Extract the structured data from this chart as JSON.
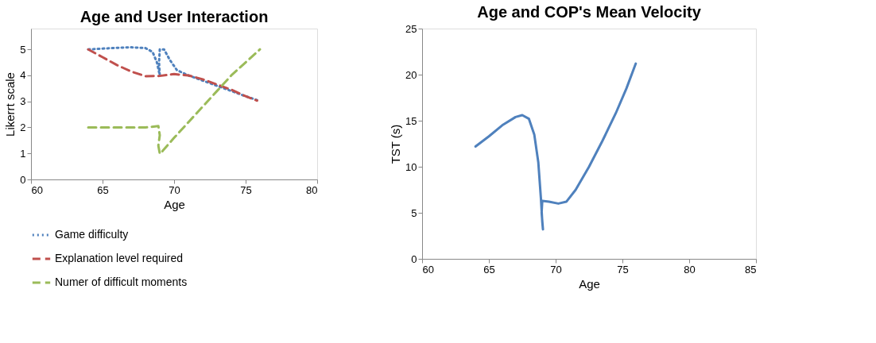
{
  "chart_data": [
    {
      "type": "line",
      "title": "Age and User Interaction",
      "xlabel": "Age",
      "ylabel": "Likerrt scale",
      "xlim": [
        60,
        80
      ],
      "xticks": [
        60,
        65,
        70,
        75,
        80
      ],
      "ylim": [
        0,
        5.8
      ],
      "yticks": [
        0,
        1,
        2,
        3,
        4,
        5
      ],
      "legend": "bottom",
      "series": [
        {
          "name": "Game difficulty",
          "color": "#4f81bd",
          "line_style": "dotted",
          "x": [
            64,
            65,
            66,
            67,
            68,
            68.5,
            68.8,
            69,
            68.95,
            69,
            69.3,
            69.7,
            70.2,
            71,
            72,
            73,
            74,
            75,
            75.8
          ],
          "values": [
            5,
            5.03,
            5.06,
            5.08,
            5.05,
            4.9,
            4.5,
            4,
            4.5,
            5,
            5,
            4.6,
            4.2,
            4,
            3.8,
            3.6,
            3.4,
            3.2,
            3.05
          ]
        },
        {
          "name": "Explanation level required",
          "color": "#c0504d",
          "line_style": "dashed",
          "x": [
            64,
            65,
            66,
            67,
            68,
            69,
            70,
            71,
            72,
            73,
            74,
            75,
            75.8
          ],
          "values": [
            5,
            4.7,
            4.4,
            4.15,
            3.97,
            3.98,
            4.05,
            4,
            3.85,
            3.65,
            3.45,
            3.2,
            3.03
          ]
        },
        {
          "name": "Numer of difficult moments",
          "color": "#9bbb59",
          "line_style": "dashed",
          "x": [
            64,
            65,
            66,
            67,
            68,
            68.9,
            69,
            68.9,
            69,
            69.1,
            69.2,
            70,
            71,
            72,
            73,
            74,
            75,
            76
          ],
          "values": [
            2,
            2,
            2,
            2,
            2,
            2.05,
            1.7,
            1.3,
            1,
            1,
            1.1,
            1.6,
            2.2,
            2.8,
            3.4,
            4,
            4.5,
            5
          ]
        }
      ]
    },
    {
      "type": "line",
      "title": "Age and COP's Mean Velocity",
      "xlabel": "Age",
      "ylabel": "TST (s)",
      "xlim": [
        60,
        85
      ],
      "xticks": [
        60,
        65,
        70,
        75,
        80,
        85
      ],
      "ylim": [
        0,
        25
      ],
      "yticks": [
        0,
        5,
        10,
        15,
        20,
        25
      ],
      "series": [
        {
          "color": "#4f81bd",
          "line_style": "solid",
          "x": [
            64,
            65,
            66,
            67,
            67.5,
            68,
            68.4,
            68.7,
            68.9,
            69,
            69.05,
            68.95,
            69,
            69.5,
            70.2,
            70.8,
            71.5,
            72.5,
            73.5,
            74.5,
            75.3,
            76
          ],
          "values": [
            12.2,
            13.3,
            14.5,
            15.4,
            15.6,
            15.2,
            13.5,
            10.5,
            6.5,
            4,
            3.2,
            5,
            6.3,
            6.2,
            6,
            6.2,
            7.5,
            10,
            12.8,
            15.8,
            18.5,
            21.2
          ]
        }
      ]
    }
  ]
}
